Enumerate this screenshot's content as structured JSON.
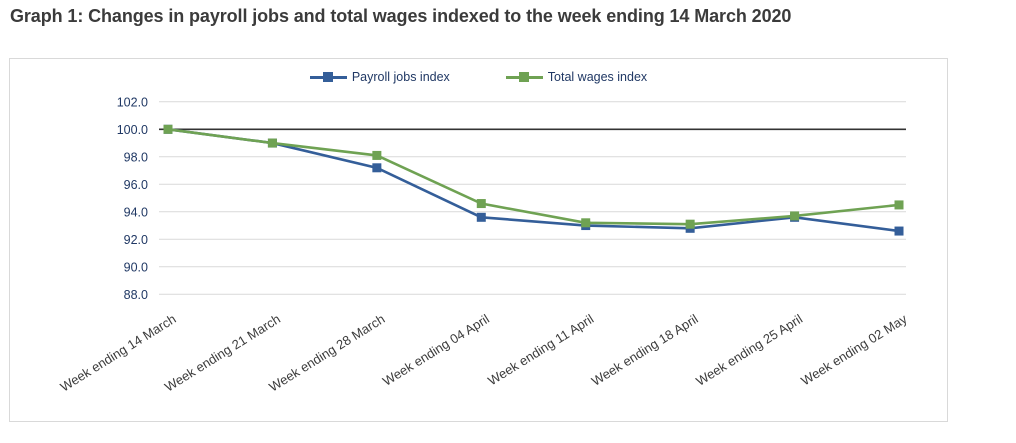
{
  "chart_data": {
    "type": "line",
    "title": "Graph 1: Changes in payroll jobs and total wages indexed to the week ending 14 March 2020",
    "categories": [
      "Week ending 14 March",
      "Week ending 21 March",
      "Week ending 28 March",
      "Week ending 04 April",
      "Week ending 11 April",
      "Week ending 18 April",
      "Week ending 25 April",
      "Week ending 02 May"
    ],
    "series": [
      {
        "name": "Payroll jobs index",
        "color": "#345E99",
        "values": [
          100.0,
          99.0,
          97.2,
          93.6,
          93.0,
          92.8,
          93.6,
          92.6
        ]
      },
      {
        "name": "Total wages index",
        "color": "#6FA253",
        "values": [
          100.0,
          99.0,
          98.1,
          94.6,
          93.2,
          93.1,
          93.7,
          94.5
        ]
      }
    ],
    "yticks": [
      102.0,
      100.0,
      98.0,
      96.0,
      94.0,
      92.0,
      90.0,
      88.0
    ],
    "ylim": [
      88.0,
      102.0
    ],
    "baseline_value": 100.0,
    "baseline_color": "#333333",
    "gridline_color": "#d9d9d9",
    "grid": true,
    "legend_position": "top",
    "xlabel": "",
    "ylabel": ""
  }
}
